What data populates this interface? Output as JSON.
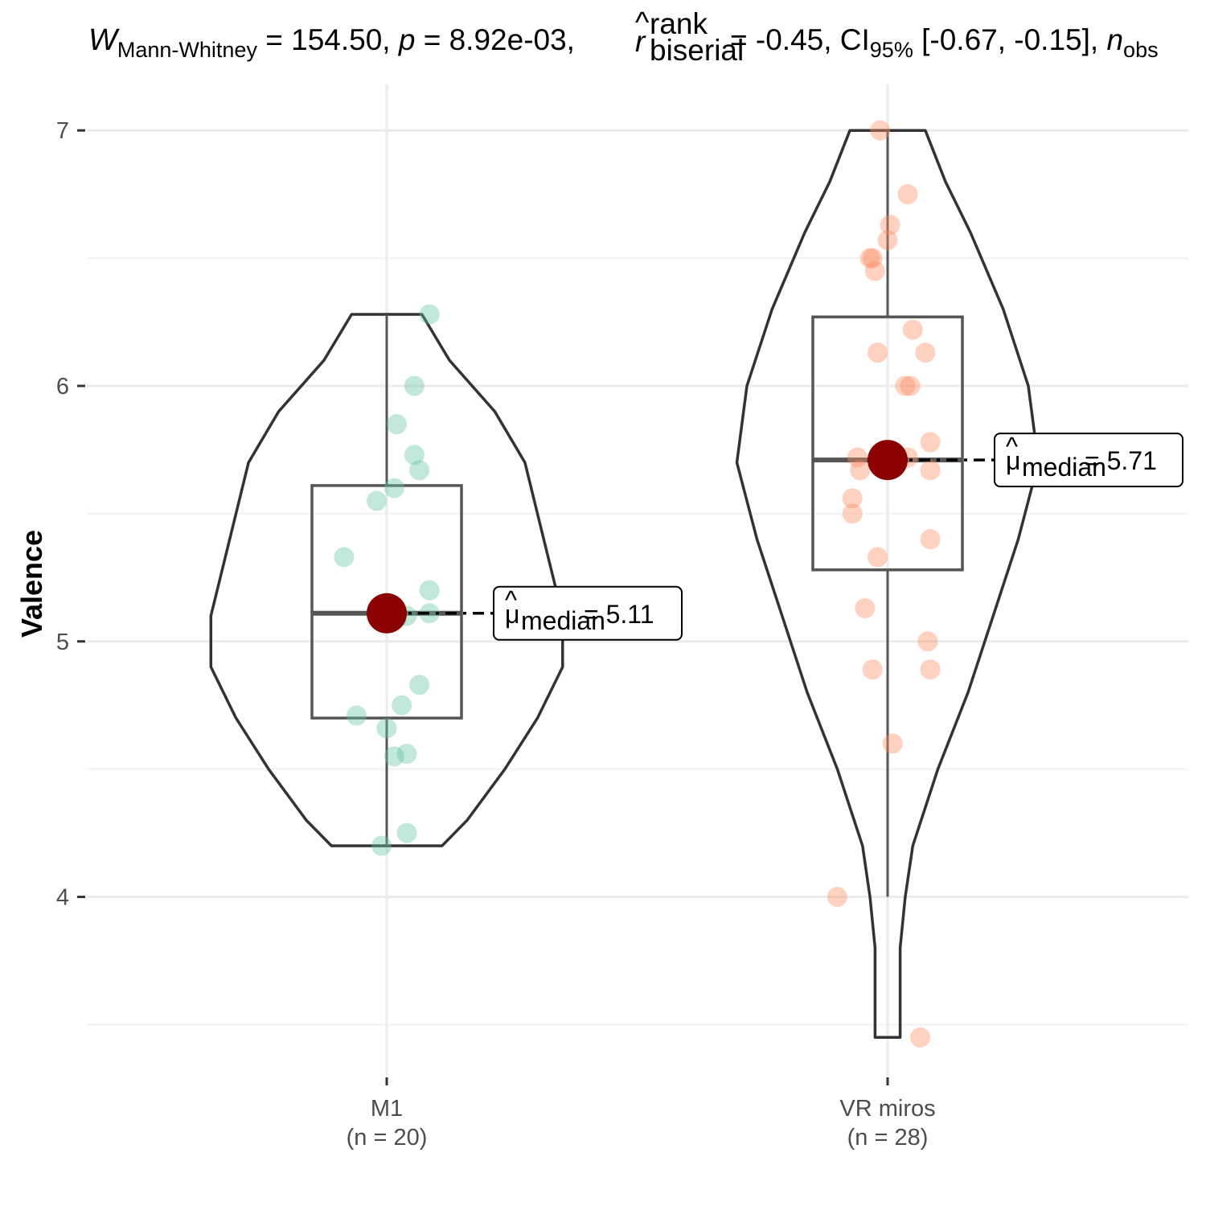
{
  "chart_data": {
    "type": "violin-box-scatter",
    "title": {
      "W": "W",
      "W_sub": "Mann-Whitney",
      "W_val": " = 154.50, ",
      "p": "p",
      "p_val": " = 8.92e-03, ",
      "r": "r",
      "r_hat": "^",
      "r_sup": "rank",
      "r_sub": "biserial",
      "r_val": " = -0.45, CI",
      "ci_sub": "95%",
      "ci_val": " [-0.67, -0.15], ",
      "n": "n",
      "n_sub": "obs"
    },
    "ylabel": "Valence",
    "ylim": [
      3.3,
      7.18
    ],
    "y_ticks": [
      4,
      5,
      6,
      7
    ],
    "y_tick_labels": [
      "4",
      "5",
      "6",
      "7"
    ],
    "groups": [
      {
        "name": "M1",
        "n_label": "(n = 20)",
        "color": "#66c2a5",
        "median": 5.11,
        "box": {
          "q1": 4.7,
          "q3": 5.61,
          "whisker_low": 4.2,
          "whisker_high": 6.28
        },
        "violin": [
          [
            4.2,
            0.22
          ],
          [
            4.3,
            0.32
          ],
          [
            4.5,
            0.47
          ],
          [
            4.7,
            0.6
          ],
          [
            4.9,
            0.7
          ],
          [
            5.1,
            0.7
          ],
          [
            5.3,
            0.65
          ],
          [
            5.5,
            0.6
          ],
          [
            5.7,
            0.55
          ],
          [
            5.9,
            0.43
          ],
          [
            6.1,
            0.25
          ],
          [
            6.28,
            0.14
          ]
        ],
        "points": [
          [
            -0.02,
            4.2
          ],
          [
            0.08,
            4.25
          ],
          [
            0.03,
            4.55
          ],
          [
            0.08,
            4.56
          ],
          [
            0.0,
            4.66
          ],
          [
            -0.12,
            4.71
          ],
          [
            0.06,
            4.75
          ],
          [
            0.13,
            4.83
          ],
          [
            0.04,
            5.09
          ],
          [
            0.08,
            5.1
          ],
          [
            0.17,
            5.11
          ],
          [
            0.17,
            5.2
          ],
          [
            -0.17,
            5.33
          ],
          [
            -0.04,
            5.55
          ],
          [
            0.03,
            5.6
          ],
          [
            0.13,
            5.67
          ],
          [
            0.11,
            5.73
          ],
          [
            0.04,
            5.85
          ],
          [
            0.11,
            6.0
          ],
          [
            0.17,
            6.28
          ]
        ],
        "annotation": {
          "mu": "μ",
          "hat": "^",
          "sub": "median",
          "text": " = 5.11"
        }
      },
      {
        "name": "VR miros",
        "n_label": "(n = 28)",
        "color": "#fc8d62",
        "median": 5.71,
        "box": {
          "q1": 5.28,
          "q3": 6.27,
          "whisker_low": 4.0,
          "whisker_high": 7.0
        },
        "violin": [
          [
            3.45,
            0.05
          ],
          [
            3.6,
            0.05
          ],
          [
            3.8,
            0.05
          ],
          [
            4.0,
            0.07
          ],
          [
            4.2,
            0.1
          ],
          [
            4.5,
            0.2
          ],
          [
            4.8,
            0.32
          ],
          [
            5.1,
            0.42
          ],
          [
            5.4,
            0.52
          ],
          [
            5.7,
            0.6
          ],
          [
            6.0,
            0.56
          ],
          [
            6.3,
            0.46
          ],
          [
            6.6,
            0.33
          ],
          [
            6.8,
            0.23
          ],
          [
            7.0,
            0.15
          ]
        ],
        "points": [
          [
            -0.03,
            7.0
          ],
          [
            0.08,
            6.75
          ],
          [
            0.01,
            6.63
          ],
          [
            0.0,
            6.57
          ],
          [
            -0.07,
            6.5
          ],
          [
            -0.06,
            6.5
          ],
          [
            -0.05,
            6.45
          ],
          [
            0.1,
            6.22
          ],
          [
            -0.04,
            6.13
          ],
          [
            0.15,
            6.13
          ],
          [
            0.07,
            6.0
          ],
          [
            0.09,
            6.0
          ],
          [
            0.17,
            5.78
          ],
          [
            -0.12,
            5.72
          ],
          [
            0.08,
            5.72
          ],
          [
            -0.11,
            5.67
          ],
          [
            0.17,
            5.67
          ],
          [
            -0.14,
            5.56
          ],
          [
            -0.14,
            5.5
          ],
          [
            0.17,
            5.4
          ],
          [
            -0.04,
            5.33
          ],
          [
            -0.09,
            5.13
          ],
          [
            0.16,
            5.0
          ],
          [
            -0.06,
            4.89
          ],
          [
            0.17,
            4.89
          ],
          [
            0.02,
            4.6
          ],
          [
            -0.2,
            4.0
          ],
          [
            0.13,
            3.45
          ]
        ],
        "annotation": {
          "mu": "μ",
          "hat": "^",
          "sub": "median",
          "text": " = 5.71"
        }
      }
    ],
    "median_point_color": "#8b0000",
    "grid": true,
    "legend": "none"
  }
}
